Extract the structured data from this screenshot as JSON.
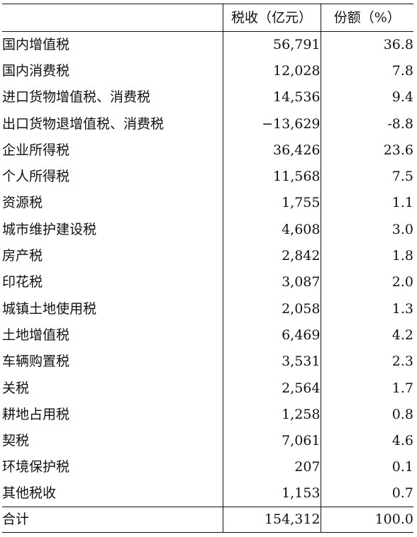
{
  "table": {
    "headers": {
      "col1": "",
      "col2": "税收（亿元）",
      "col3": "份额（%）"
    },
    "rows": [
      {
        "name": "国内增值税",
        "revenue": "56,791",
        "share": "36.8"
      },
      {
        "name": "国内消费税",
        "revenue": "12,028",
        "share": "7.8"
      },
      {
        "name": "进口货物增值税、消费税",
        "revenue": "14,536",
        "share": "9.4"
      },
      {
        "name": "出口货物退增值税、消费税",
        "revenue": "−13,629",
        "share": "-8.8"
      },
      {
        "name": "企业所得税",
        "revenue": "36,426",
        "share": "23.6"
      },
      {
        "name": "个人所得税",
        "revenue": "11,568",
        "share": "7.5"
      },
      {
        "name": "资源税",
        "revenue": "1,755",
        "share": "1.1"
      },
      {
        "name": "城市维护建设税",
        "revenue": "4,608",
        "share": "3.0"
      },
      {
        "name": "房产税",
        "revenue": "2,842",
        "share": "1.8"
      },
      {
        "name": "印花税",
        "revenue": "3,087",
        "share": "2.0"
      },
      {
        "name": "城镇土地使用税",
        "revenue": "2,058",
        "share": "1.3"
      },
      {
        "name": "土地增值税",
        "revenue": "6,469",
        "share": "4.2"
      },
      {
        "name": "车辆购置税",
        "revenue": "3,531",
        "share": "2.3"
      },
      {
        "name": "关税",
        "revenue": "2,564",
        "share": "1.7"
      },
      {
        "name": "耕地占用税",
        "revenue": "1,258",
        "share": "0.8"
      },
      {
        "name": "契税",
        "revenue": "7,061",
        "share": "4.6"
      },
      {
        "name": "环境保护税",
        "revenue": "207",
        "share": "0.1"
      },
      {
        "name": "其他税收",
        "revenue": "1,153",
        "share": "0.7"
      }
    ],
    "total": {
      "name": "合计",
      "revenue": "154,312",
      "share": "100.0"
    }
  }
}
